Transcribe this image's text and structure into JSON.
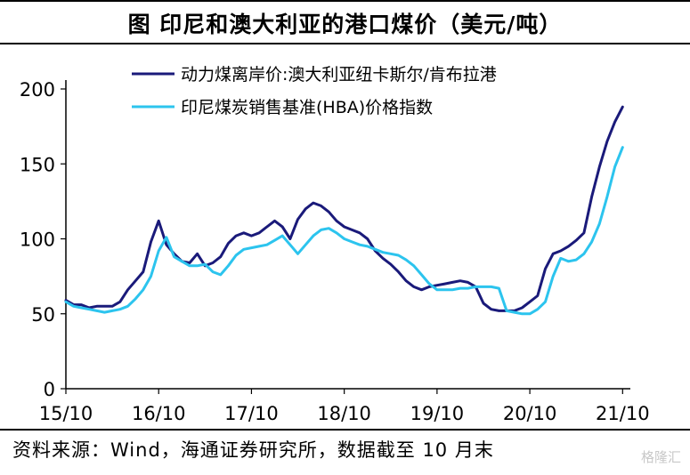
{
  "title": "图  印尼和澳大利亚的港口煤价（美元/吨）",
  "source": "资料来源：Wind，海通证券研究所，数据截至 10 月末",
  "watermark": "格隆汇",
  "chart_data": {
    "type": "line",
    "ylim": [
      0,
      200
    ],
    "yticks": [
      0,
      50,
      100,
      150,
      200
    ],
    "xlim": [
      0,
      73
    ],
    "xticks": [
      {
        "t": 0,
        "label": "15/10"
      },
      {
        "t": 12,
        "label": "16/10"
      },
      {
        "t": 24,
        "label": "17/10"
      },
      {
        "t": 36,
        "label": "18/10"
      },
      {
        "t": 48,
        "label": "19/10"
      },
      {
        "t": 60,
        "label": "20/10"
      },
      {
        "t": 72,
        "label": "21/10"
      }
    ],
    "legend_position": "top",
    "series": [
      {
        "name": "动力煤离岸价:澳大利亚纽卡斯尔/肯布拉港",
        "color": "#1a1a7a",
        "x": [
          0,
          1,
          2,
          3,
          4,
          5,
          6,
          7,
          8,
          9,
          10,
          11,
          12,
          13,
          14,
          15,
          16,
          17,
          18,
          19,
          20,
          21,
          22,
          23,
          24,
          25,
          26,
          27,
          28,
          29,
          30,
          31,
          32,
          33,
          34,
          35,
          36,
          37,
          38,
          39,
          40,
          41,
          42,
          43,
          44,
          45,
          46,
          47,
          48,
          49,
          50,
          51,
          52,
          53,
          54,
          55,
          56,
          57,
          58,
          59,
          60,
          61,
          62,
          63,
          64,
          65,
          66,
          67,
          68,
          69,
          70,
          71,
          72
        ],
        "values": [
          59,
          56,
          56,
          54,
          55,
          55,
          55,
          58,
          66,
          72,
          78,
          98,
          112,
          96,
          90,
          85,
          84,
          90,
          82,
          84,
          88,
          97,
          102,
          104,
          102,
          104,
          108,
          112,
          108,
          100,
          113,
          120,
          124,
          122,
          118,
          112,
          108,
          106,
          104,
          100,
          92,
          87,
          83,
          78,
          72,
          68,
          66,
          68,
          69,
          70,
          71,
          72,
          71,
          68,
          57,
          53,
          52,
          52,
          52,
          54,
          58,
          62,
          80,
          90,
          92,
          95,
          99,
          104,
          128,
          148,
          165,
          178,
          188
        ]
      },
      {
        "name": "印尼煤炭销售基准(HBA)价格指数",
        "color": "#2cc4ee",
        "x": [
          0,
          1,
          2,
          3,
          4,
          5,
          6,
          7,
          8,
          9,
          10,
          11,
          12,
          13,
          14,
          15,
          16,
          17,
          18,
          19,
          20,
          21,
          22,
          23,
          24,
          25,
          26,
          27,
          28,
          29,
          30,
          31,
          32,
          33,
          34,
          35,
          36,
          37,
          38,
          39,
          40,
          41,
          42,
          43,
          44,
          45,
          46,
          47,
          48,
          49,
          50,
          51,
          52,
          53,
          54,
          55,
          56,
          57,
          58,
          59,
          60,
          61,
          62,
          63,
          64,
          65,
          66,
          67,
          68,
          69,
          70,
          71,
          72
        ],
        "values": [
          58,
          55,
          54,
          53,
          52,
          51,
          52,
          53,
          55,
          60,
          66,
          75,
          92,
          101,
          88,
          85,
          82,
          82,
          83,
          78,
          76,
          82,
          89,
          93,
          94,
          95,
          96,
          99,
          102,
          96,
          90,
          96,
          102,
          106,
          107,
          104,
          100,
          98,
          96,
          95,
          93,
          91,
          90,
          89,
          86,
          82,
          76,
          70,
          66,
          66,
          66,
          67,
          67,
          68,
          68,
          68,
          67,
          52,
          51,
          50,
          50,
          53,
          58,
          75,
          87,
          85,
          86,
          90,
          98,
          110,
          128,
          148,
          161
        ]
      }
    ]
  }
}
